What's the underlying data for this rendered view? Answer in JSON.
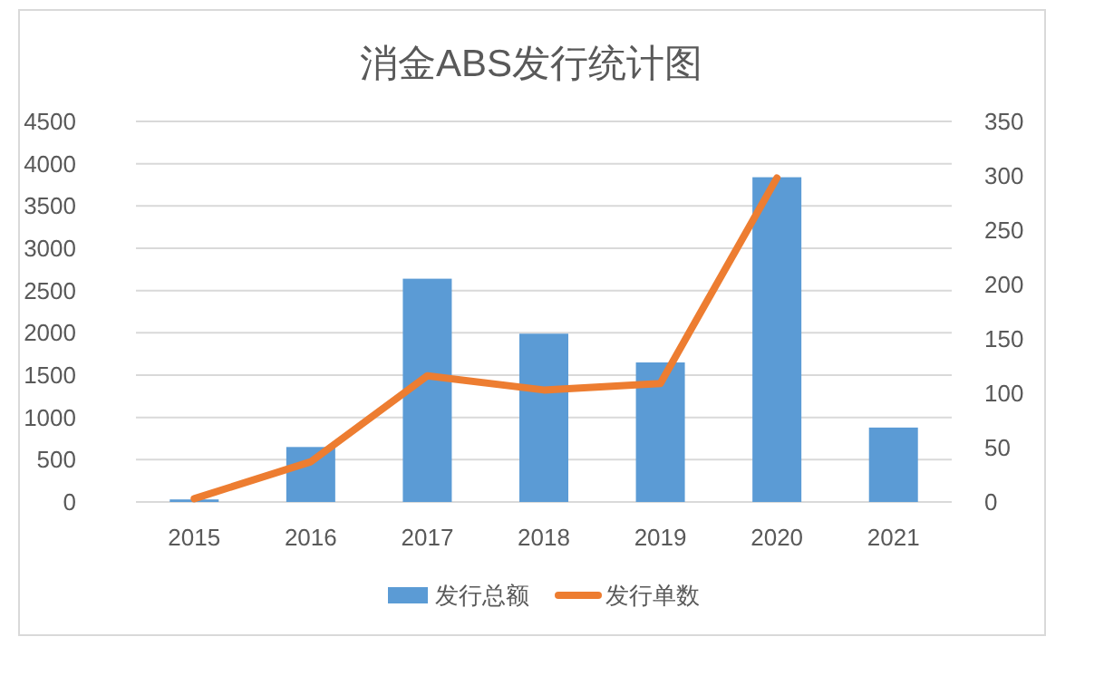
{
  "chart_data": {
    "type": "bar",
    "title": "消金ABS发行统计图",
    "categories": [
      "2015",
      "2016",
      "2017",
      "2018",
      "2019",
      "2020",
      "2021"
    ],
    "series": [
      {
        "name": "发行总额",
        "color": "#5b9bd5",
        "values": [
          30,
          650,
          2640,
          1990,
          1650,
          3840,
          880
        ]
      },
      {
        "name": "发行单数",
        "type": "line",
        "axis": "y2",
        "color": "#ed7d31",
        "values": [
          3,
          37,
          116,
          103,
          109,
          298,
          null
        ]
      }
    ],
    "ylim": [
      0,
      4500
    ],
    "yticks": [
      0,
      500,
      1000,
      1500,
      2000,
      2500,
      3000,
      3500,
      4000,
      4500
    ],
    "y2lim": [
      0,
      350
    ],
    "y2ticks": [
      0,
      50,
      100,
      150,
      200,
      250,
      300,
      350
    ],
    "grid": "y",
    "legend": "bottom"
  }
}
